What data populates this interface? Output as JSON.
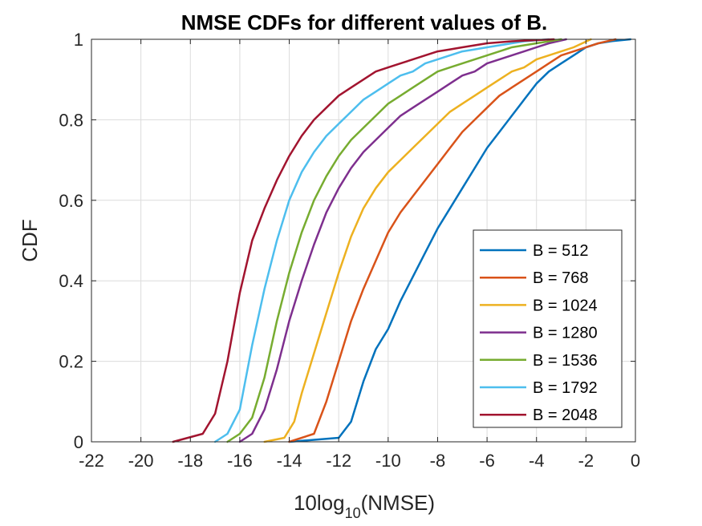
{
  "chart_data": {
    "type": "line",
    "title": "NMSE CDFs for different values of B.",
    "xlabel": {
      "main": "10log",
      "sub": "10",
      "post": "(NMSE)"
    },
    "ylabel": "CDF",
    "xlim": [
      -22,
      0
    ],
    "ylim": [
      0,
      1
    ],
    "xticks": [
      -22,
      -20,
      -18,
      -16,
      -14,
      -12,
      -10,
      -8,
      -6,
      -4,
      -2,
      0
    ],
    "xtick_labels": [
      "-22",
      "-20",
      "-18",
      "-16",
      "-14",
      "-12",
      "-10",
      "-8",
      "-6",
      "-4",
      "-2",
      "0"
    ],
    "yticks": [
      0,
      0.2,
      0.4,
      0.6,
      0.8,
      1
    ],
    "ytick_labels": [
      "0",
      "0.2",
      "0.4",
      "0.6",
      "0.8",
      "1"
    ],
    "grid": true,
    "legend_position": "bottom-right",
    "series": [
      {
        "name": "B = 512",
        "color": "#0072BD",
        "x": [
          -14.0,
          -12.0,
          -11.5,
          -11.0,
          -10.5,
          -10.0,
          -9.5,
          -9.0,
          -8.5,
          -8.0,
          -7.5,
          -7.0,
          -6.5,
          -6.0,
          -5.5,
          -5.0,
          -4.5,
          -4.0,
          -3.5,
          -3.0,
          -2.5,
          -2.0,
          -1.5,
          -1.0,
          -0.2
        ],
        "y": [
          0.0,
          0.01,
          0.05,
          0.15,
          0.23,
          0.28,
          0.35,
          0.41,
          0.47,
          0.53,
          0.58,
          0.63,
          0.68,
          0.73,
          0.77,
          0.81,
          0.85,
          0.89,
          0.92,
          0.94,
          0.96,
          0.98,
          0.99,
          0.995,
          1.0
        ]
      },
      {
        "name": "B = 768",
        "color": "#D95319",
        "x": [
          -14.0,
          -13.0,
          -12.5,
          -12.0,
          -11.5,
          -11.0,
          -10.5,
          -10.0,
          -9.5,
          -9.0,
          -8.5,
          -8.0,
          -7.5,
          -7.0,
          -6.5,
          -6.0,
          -5.5,
          -5.0,
          -4.5,
          -4.0,
          -3.5,
          -3.0,
          -2.5,
          -2.0,
          -1.5,
          -0.8
        ],
        "y": [
          0.0,
          0.02,
          0.1,
          0.2,
          0.3,
          0.38,
          0.45,
          0.52,
          0.57,
          0.61,
          0.65,
          0.69,
          0.73,
          0.77,
          0.8,
          0.83,
          0.86,
          0.88,
          0.9,
          0.92,
          0.94,
          0.96,
          0.97,
          0.98,
          0.99,
          1.0
        ]
      },
      {
        "name": "B = 1024",
        "color": "#EDB120",
        "x": [
          -15.0,
          -14.2,
          -13.8,
          -13.5,
          -13.0,
          -12.5,
          -12.0,
          -11.5,
          -11.0,
          -10.5,
          -10.0,
          -9.5,
          -9.0,
          -8.5,
          -8.0,
          -7.5,
          -7.0,
          -6.5,
          -6.0,
          -5.5,
          -5.0,
          -4.5,
          -4.0,
          -3.5,
          -3.0,
          -2.5,
          -1.8
        ],
        "y": [
          0.0,
          0.01,
          0.05,
          0.12,
          0.22,
          0.32,
          0.42,
          0.51,
          0.58,
          0.63,
          0.67,
          0.7,
          0.73,
          0.76,
          0.79,
          0.82,
          0.84,
          0.86,
          0.88,
          0.9,
          0.92,
          0.93,
          0.95,
          0.96,
          0.97,
          0.98,
          1.0
        ]
      },
      {
        "name": "B = 1280",
        "color": "#7E2F8E",
        "x": [
          -16.0,
          -15.5,
          -15.0,
          -14.5,
          -14.0,
          -13.5,
          -13.0,
          -12.5,
          -12.0,
          -11.5,
          -11.0,
          -10.5,
          -10.0,
          -9.5,
          -9.0,
          -8.5,
          -8.0,
          -7.5,
          -7.0,
          -6.5,
          -6.0,
          -5.5,
          -5.0,
          -4.5,
          -4.0,
          -3.5,
          -2.8
        ],
        "y": [
          0.0,
          0.02,
          0.08,
          0.18,
          0.3,
          0.4,
          0.49,
          0.57,
          0.63,
          0.68,
          0.72,
          0.75,
          0.78,
          0.81,
          0.83,
          0.85,
          0.87,
          0.89,
          0.91,
          0.92,
          0.94,
          0.95,
          0.96,
          0.97,
          0.98,
          0.99,
          1.0
        ]
      },
      {
        "name": "B = 1536",
        "color": "#77AC30",
        "x": [
          -16.5,
          -16.0,
          -15.5,
          -15.0,
          -14.5,
          -14.0,
          -13.5,
          -13.0,
          -12.5,
          -12.0,
          -11.5,
          -11.0,
          -10.5,
          -10.0,
          -9.5,
          -9.0,
          -8.5,
          -8.0,
          -7.5,
          -7.0,
          -6.5,
          -6.0,
          -5.5,
          -5.0,
          -4.5,
          -4.0,
          -3.0
        ],
        "y": [
          0.0,
          0.02,
          0.06,
          0.16,
          0.3,
          0.42,
          0.52,
          0.6,
          0.66,
          0.71,
          0.75,
          0.78,
          0.81,
          0.84,
          0.86,
          0.88,
          0.9,
          0.92,
          0.93,
          0.94,
          0.95,
          0.96,
          0.97,
          0.98,
          0.985,
          0.99,
          1.0
        ]
      },
      {
        "name": "B = 1792",
        "color": "#4DBEEE",
        "x": [
          -17.0,
          -16.5,
          -16.0,
          -15.5,
          -15.0,
          -14.5,
          -14.0,
          -13.5,
          -13.0,
          -12.5,
          -12.0,
          -11.5,
          -11.0,
          -10.5,
          -10.0,
          -9.5,
          -9.0,
          -8.5,
          -8.0,
          -7.5,
          -7.0,
          -6.5,
          -6.0,
          -5.5,
          -5.0,
          -4.5,
          -3.5
        ],
        "y": [
          0.0,
          0.02,
          0.08,
          0.24,
          0.38,
          0.5,
          0.6,
          0.67,
          0.72,
          0.76,
          0.79,
          0.82,
          0.85,
          0.87,
          0.89,
          0.91,
          0.92,
          0.94,
          0.95,
          0.96,
          0.97,
          0.975,
          0.98,
          0.985,
          0.99,
          0.995,
          1.0
        ]
      },
      {
        "name": "B = 2048",
        "color": "#A2142F",
        "x": [
          -18.7,
          -17.5,
          -17.0,
          -16.5,
          -16.0,
          -15.5,
          -15.0,
          -14.5,
          -14.0,
          -13.5,
          -13.0,
          -12.5,
          -12.0,
          -11.5,
          -11.0,
          -10.5,
          -10.0,
          -9.5,
          -9.0,
          -8.5,
          -8.0,
          -7.5,
          -7.0,
          -6.5,
          -6.0,
          -5.0,
          -3.3
        ],
        "y": [
          0.0,
          0.02,
          0.07,
          0.2,
          0.37,
          0.5,
          0.58,
          0.65,
          0.71,
          0.76,
          0.8,
          0.83,
          0.86,
          0.88,
          0.9,
          0.92,
          0.93,
          0.94,
          0.95,
          0.96,
          0.97,
          0.975,
          0.98,
          0.985,
          0.99,
          0.995,
          1.0
        ]
      }
    ]
  }
}
